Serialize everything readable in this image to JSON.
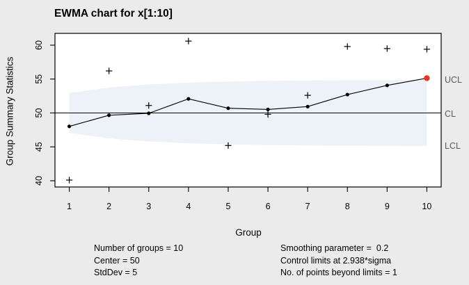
{
  "title": "EWMA chart for x[1:10]",
  "limit_labels": {
    "ucl": "UCL",
    "cl": "CL",
    "lcl": "LCL"
  },
  "stats_left": [
    "Number of groups = 10",
    "Center = 50",
    "StdDev = 5"
  ],
  "stats_right": [
    "Smoothing parameter =  0.2",
    "Control limits at 2.938*sigma",
    "No. of points beyond limits = 1"
  ],
  "colors": {
    "background": "#ebebeb",
    "plot_background": "#ffffff",
    "band": "#edf1f8",
    "line": "#000000",
    "beyond_limit": "#e73423",
    "limit_label": "#5b5b5b"
  },
  "chart_data": {
    "type": "line",
    "title": "EWMA chart for x[1:10]",
    "xlabel": "Group",
    "ylabel": "Group Summary Statistics",
    "x": [
      1,
      2,
      3,
      4,
      5,
      6,
      7,
      8,
      9,
      10
    ],
    "series": [
      {
        "name": "summary-statistics",
        "marker": "cross",
        "values": [
          40.1,
          56.2,
          51.1,
          60.6,
          45.2,
          49.8,
          52.6,
          59.8,
          59.5,
          59.4
        ]
      },
      {
        "name": "ewma",
        "marker": "dot-line",
        "values": [
          48.02,
          49.66,
          49.95,
          52.08,
          50.7,
          50.52,
          50.94,
          52.71,
          54.07,
          55.13
        ]
      }
    ],
    "center": 50,
    "ucl": [
      52.94,
      53.76,
      54.21,
      54.47,
      54.63,
      54.73,
      54.79,
      54.83,
      54.85,
      54.87
    ],
    "lcl": [
      47.06,
      46.24,
      45.79,
      45.53,
      45.37,
      45.27,
      45.21,
      45.17,
      45.15,
      45.13
    ],
    "beyond_limits_groups": [
      10
    ],
    "x_ticks": [
      1,
      2,
      3,
      4,
      5,
      6,
      7,
      8,
      9,
      10
    ],
    "y_ticks": [
      40,
      45,
      50,
      55,
      60
    ],
    "xlim": [
      0.64,
      10.36
    ],
    "ylim": [
      39.08,
      61.74
    ],
    "grid": false,
    "legend_position": "none",
    "smoothing_parameter": 0.2,
    "sigma_multiplier": 2.938,
    "number_of_groups": 10,
    "std_dev": 5,
    "points_beyond_limits": 1
  }
}
